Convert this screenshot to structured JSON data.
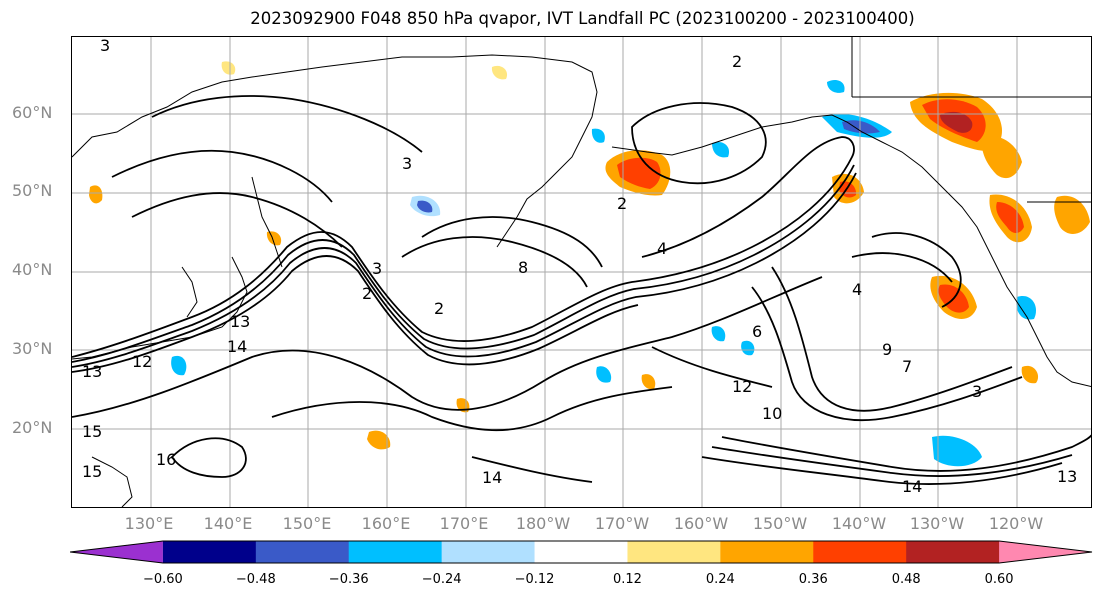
{
  "title": "2023092900 F048 850 hPa qvapor, IVT Landfall PC (2023100200 - 2023100400)",
  "lat_labels": [
    "60°N",
    "50°N",
    "40°N",
    "30°N",
    "20°N"
  ],
  "lon_labels": [
    "130°E",
    "140°E",
    "150°E",
    "160°E",
    "170°E",
    "180°W",
    "170°W",
    "160°W",
    "150°W",
    "140°W",
    "130°W",
    "120°W"
  ],
  "colorbar": {
    "colors": [
      "#9b30d0",
      "#00008b",
      "#3a5ac8",
      "#00bfff",
      "#b0e0ff",
      "#ffffff",
      "#ffe680",
      "#ffa500",
      "#ff4000",
      "#b22222",
      "#ff88b0"
    ],
    "tick_labels": [
      "−0.60",
      "−0.48",
      "−0.36",
      "−0.24",
      "−0.12",
      "0.12",
      "0.24",
      "0.36",
      "0.48",
      "0.60"
    ]
  },
  "contour_labels": [
    "3",
    "2",
    "3",
    "2",
    "4",
    "3",
    "2",
    "2",
    "8",
    "16",
    "14",
    "13",
    "15",
    "15",
    "14",
    "13",
    "14",
    "12",
    "10",
    "9",
    "7",
    "6",
    "4",
    "3",
    "13",
    "12"
  ]
}
